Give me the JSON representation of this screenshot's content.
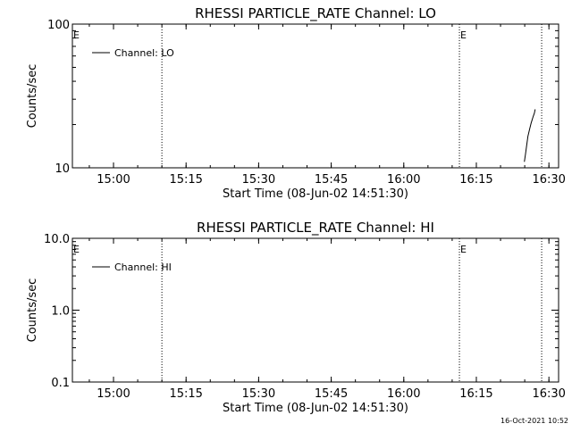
{
  "chart_data": [
    {
      "type": "line",
      "title": "RHESSI PARTICLE_RATE Channel: LO",
      "xlabel": "Start Time (08-Jun-02 14:51:30)",
      "ylabel": "Counts/sec",
      "yscale": "log",
      "ylim": [
        10,
        100
      ],
      "yticks": [
        {
          "v": 10,
          "label": "10"
        },
        {
          "v": 100,
          "label": "100"
        }
      ],
      "xlim": [
        "14:51:30",
        "16:32:00"
      ],
      "xticks": [
        "15:00",
        "15:15",
        "15:30",
        "15:45",
        "16:00",
        "16:15",
        "16:30"
      ],
      "legend_position": "top-left",
      "series": [
        {
          "name": "Channel: LO",
          "x": [
            "16:24:55",
            "16:25:10",
            "16:25:25",
            "16:25:40",
            "16:26:00",
            "16:26:20",
            "16:26:45",
            "16:27:00",
            "16:27:10"
          ],
          "y": [
            11.0,
            12.5,
            14.5,
            16.6,
            18.5,
            20.5,
            22.8,
            24.0,
            25.5
          ]
        }
      ],
      "vlines": [
        "15:10:00",
        "16:11:30",
        "16:28:30"
      ],
      "flags": [
        {
          "x": "14:51:30",
          "label": "E"
        },
        {
          "x": "16:11:30",
          "label": "E"
        }
      ]
    },
    {
      "type": "line",
      "title": "RHESSI PARTICLE_RATE Channel: HI",
      "xlabel": "Start Time (08-Jun-02 14:51:30)",
      "ylabel": "Counts/sec",
      "yscale": "log",
      "ylim": [
        0.1,
        10
      ],
      "yticks": [
        {
          "v": 0.1,
          "label": "0.1"
        },
        {
          "v": 1,
          "label": "1.0"
        },
        {
          "v": 10,
          "label": "10.0"
        }
      ],
      "xlim": [
        "14:51:30",
        "16:32:00"
      ],
      "xticks": [
        "15:00",
        "15:15",
        "15:30",
        "15:45",
        "16:00",
        "16:15",
        "16:30"
      ],
      "legend_position": "top-left",
      "series": [
        {
          "name": "Channel: HI",
          "x": [],
          "y": []
        }
      ],
      "vlines": [
        "15:10:00",
        "16:11:30",
        "16:28:30"
      ],
      "flags": [
        {
          "x": "14:51:30",
          "label": "E"
        },
        {
          "x": "16:11:30",
          "label": "E"
        }
      ]
    }
  ],
  "footer": {
    "timestamp": "16-Oct-2021 10:52"
  }
}
